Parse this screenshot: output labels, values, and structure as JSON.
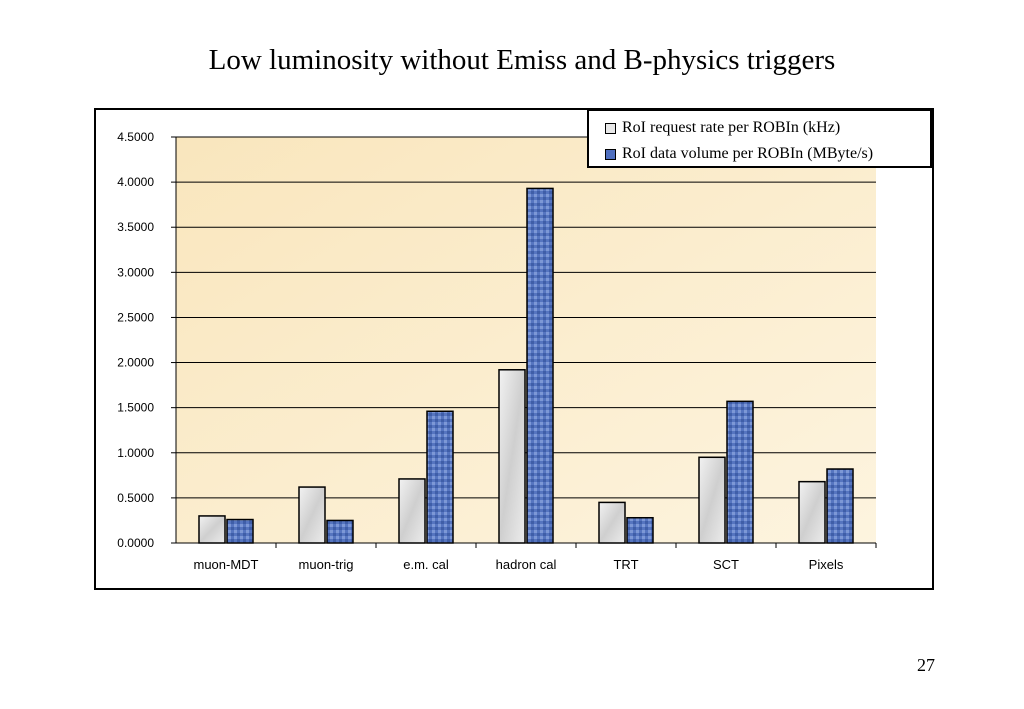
{
  "slide": {
    "title": "Low luminosity without Emiss and B-physics triggers",
    "page_number": "27"
  },
  "chart_data": {
    "type": "bar",
    "title": "",
    "xlabel": "",
    "ylabel": "",
    "categories": [
      "muon-MDT",
      "muon-trig",
      "e.m. cal",
      "hadron cal",
      "TRT",
      "SCT",
      "Pixels"
    ],
    "series": [
      {
        "name": "RoI request rate per ROBIn (kHz)",
        "values": [
          0.3,
          0.62,
          0.71,
          1.92,
          0.45,
          0.95,
          0.68
        ],
        "color": "#e2e2e2"
      },
      {
        "name": "RoI data volume per ROBIn (MByte/s)",
        "values": [
          0.26,
          0.25,
          1.46,
          3.93,
          0.28,
          1.57,
          0.82
        ],
        "color": "#5b79c4"
      }
    ],
    "ylim": [
      0,
      4.5
    ],
    "yticks": [
      "0.0000",
      "0.5000",
      "1.0000",
      "1.5000",
      "2.0000",
      "2.5000",
      "3.0000",
      "3.5000",
      "4.0000",
      "4.5000"
    ],
    "grid": true,
    "legend_position": "top-right",
    "plot_background": "#fbecc8"
  }
}
